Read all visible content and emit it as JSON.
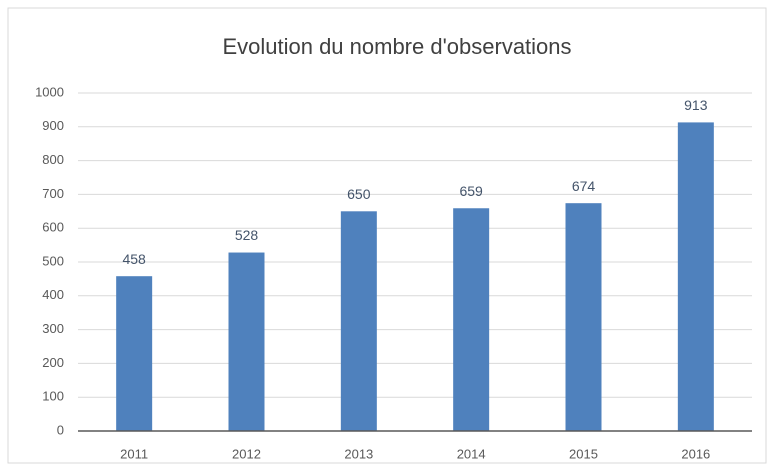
{
  "chart_data": {
    "type": "bar",
    "title": "Evolution du nombre d'observations",
    "categories": [
      "2011",
      "2012",
      "2013",
      "2014",
      "2015",
      "2016"
    ],
    "values": [
      458,
      528,
      650,
      659,
      674,
      913
    ],
    "color": "#4f81bd",
    "label_color": "#44546a",
    "ylim": [
      0,
      1000
    ],
    "yticks": [
      0,
      100,
      200,
      300,
      400,
      500,
      600,
      700,
      800,
      900,
      1000
    ],
    "grid": true
  }
}
